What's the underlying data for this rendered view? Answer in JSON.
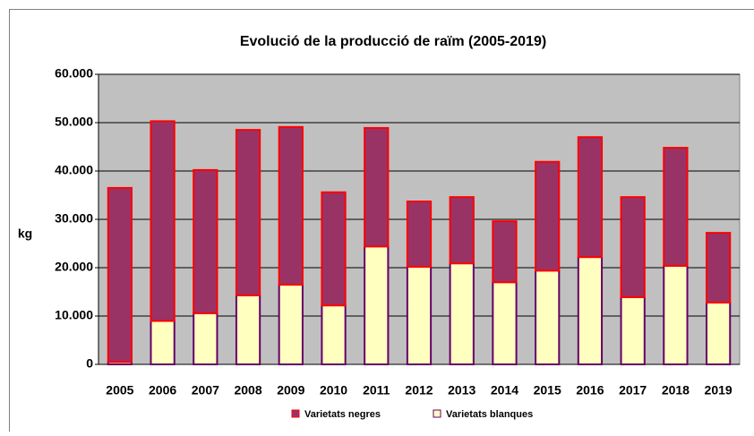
{
  "chart_data": {
    "type": "bar",
    "stacked": true,
    "title": "Evolució de la producció de raïm (2005-2019)",
    "ylabel": "kg",
    "categories": [
      "2005",
      "2006",
      "2007",
      "2008",
      "2009",
      "2010",
      "2011",
      "2012",
      "2013",
      "2014",
      "2015",
      "2016",
      "2017",
      "2018",
      "2019"
    ],
    "series": [
      {
        "name": "Varietats negres",
        "color": "#993366",
        "edgecolor": "#ff0000",
        "values": [
          36000,
          41300,
          29600,
          34200,
          32600,
          23400,
          24500,
          13500,
          13700,
          12600,
          22500,
          24800,
          20700,
          24400,
          14400
        ]
      },
      {
        "name": "Varietats blanques",
        "color": "#ffffc0",
        "edgecolor": "#660066",
        "values": [
          500,
          9000,
          10600,
          14300,
          16500,
          12200,
          24400,
          20200,
          20900,
          17000,
          19400,
          22200,
          13900,
          20400,
          12800
        ]
      }
    ],
    "stack_order": [
      1,
      0
    ],
    "ylim": [
      0,
      60000
    ],
    "yticks": [
      0,
      {
        "value": 10000,
        "label": "10.000"
      },
      {
        "value": 20000,
        "label": "20.000"
      },
      {
        "value": 30000,
        "label": "30.000"
      },
      {
        "value": 40000,
        "label": "40.000"
      },
      {
        "value": 50000,
        "label": "50.000"
      },
      {
        "value": 60000,
        "label": "60.000"
      }
    ],
    "grid": true,
    "plot_background": "#c0c0c0",
    "legend": "bottom"
  }
}
